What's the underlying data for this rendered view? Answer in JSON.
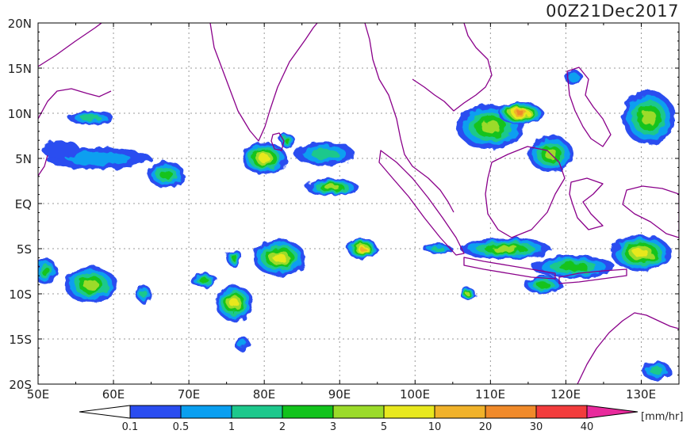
{
  "title": "00Z21Dec2017",
  "lat_labels": [
    "20N",
    "15N",
    "10N",
    "5N",
    "EQ",
    "5S",
    "10S",
    "15S",
    "20S"
  ],
  "lon_labels": [
    "50E",
    "60E",
    "70E",
    "80E",
    "90E",
    "100E",
    "110E",
    "120E",
    "130E"
  ],
  "extent": {
    "lon_min": 50,
    "lon_max": 135,
    "lat_min": -20,
    "lat_max": 20
  },
  "grid": true,
  "colorbar": {
    "unit": "[mm/hr]",
    "ticks": [
      "0.1",
      "0.5",
      "1",
      "2",
      "3",
      "5",
      "10",
      "20",
      "30",
      "40"
    ],
    "colors": [
      "#2a4df0",
      "#0a9ff0",
      "#1dc88c",
      "#12c31c",
      "#9bdb2a",
      "#e8e81e",
      "#f0b22a",
      "#f08a2a",
      "#f23c3c",
      "#e82a9c"
    ]
  },
  "coastline_color": "#8a008a",
  "rain_areas": [
    {
      "lon": 58,
      "lat": 5.0,
      "rx": 7.0,
      "ry": 1.2,
      "level": 1
    },
    {
      "lon": 67,
      "lat": 3.2,
      "rx": 2.5,
      "ry": 1.4,
      "level": 3
    },
    {
      "lon": 53,
      "lat": 6.0,
      "rx": 2.5,
      "ry": 1.0,
      "level": 0
    },
    {
      "lon": 57,
      "lat": 9.5,
      "rx": 3.0,
      "ry": 0.8,
      "level": 2
    },
    {
      "lon": 88,
      "lat": 5.5,
      "rx": 4.0,
      "ry": 1.3,
      "level": 2
    },
    {
      "lon": 89,
      "lat": 1.8,
      "rx": 3.5,
      "ry": 1.0,
      "level": 4
    },
    {
      "lon": 80,
      "lat": 5.0,
      "rx": 3.0,
      "ry": 1.8,
      "level": 5
    },
    {
      "lon": 83,
      "lat": 7.0,
      "rx": 1.0,
      "ry": 0.8,
      "level": 3
    },
    {
      "lon": 110,
      "lat": 8.5,
      "rx": 4.5,
      "ry": 2.5,
      "level": 4
    },
    {
      "lon": 114,
      "lat": 10.0,
      "rx": 3.0,
      "ry": 1.2,
      "level": 7
    },
    {
      "lon": 118,
      "lat": 5.5,
      "rx": 3.0,
      "ry": 2.0,
      "level": 4
    },
    {
      "lon": 131,
      "lat": 9.5,
      "rx": 3.5,
      "ry": 3.0,
      "level": 4
    },
    {
      "lon": 121,
      "lat": 14.0,
      "rx": 1.2,
      "ry": 0.8,
      "level": 1
    },
    {
      "lon": 112,
      "lat": -5.0,
      "rx": 6.0,
      "ry": 1.2,
      "level": 4
    },
    {
      "lon": 121,
      "lat": -7.0,
      "rx": 5.5,
      "ry": 1.3,
      "level": 3
    },
    {
      "lon": 130,
      "lat": -5.5,
      "rx": 4.0,
      "ry": 2.0,
      "level": 5
    },
    {
      "lon": 117,
      "lat": -9.0,
      "rx": 2.5,
      "ry": 1.0,
      "level": 3
    },
    {
      "lon": 57,
      "lat": -9.0,
      "rx": 3.5,
      "ry": 2.0,
      "level": 4
    },
    {
      "lon": 51,
      "lat": -7.5,
      "rx": 1.5,
      "ry": 1.5,
      "level": 3
    },
    {
      "lon": 64,
      "lat": -10.0,
      "rx": 1.0,
      "ry": 1.0,
      "level": 2
    },
    {
      "lon": 76,
      "lat": -11.0,
      "rx": 2.5,
      "ry": 2.0,
      "level": 5
    },
    {
      "lon": 72,
      "lat": -8.5,
      "rx": 1.8,
      "ry": 0.8,
      "level": 3
    },
    {
      "lon": 77,
      "lat": -15.5,
      "rx": 1.0,
      "ry": 0.8,
      "level": 1
    },
    {
      "lon": 93,
      "lat": -5.0,
      "rx": 2.0,
      "ry": 1.2,
      "level": 6
    },
    {
      "lon": 103,
      "lat": -5.0,
      "rx": 2.0,
      "ry": 0.5,
      "level": 2
    },
    {
      "lon": 107,
      "lat": -10.0,
      "rx": 1.0,
      "ry": 0.7,
      "level": 4
    },
    {
      "lon": 82,
      "lat": -6.0,
      "rx": 3.5,
      "ry": 2.0,
      "level": 5
    },
    {
      "lon": 132,
      "lat": -18.5,
      "rx": 2.0,
      "ry": 1.0,
      "level": 2
    },
    {
      "lon": 76,
      "lat": -6.0,
      "rx": 1.0,
      "ry": 1.0,
      "level": 3
    }
  ]
}
